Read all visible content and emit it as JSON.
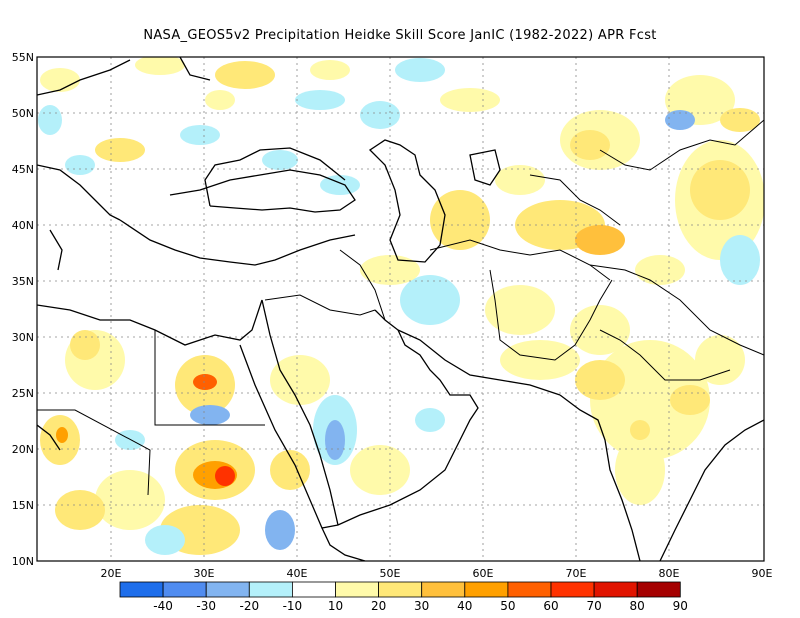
{
  "title": "NASA_GEOS5v2  Precipitation Heidke Skill Score JanIC (1982-2022) APR Fcst",
  "lat_labels": [
    "55N",
    "50N",
    "45N",
    "40N",
    "35N",
    "30N",
    "25N",
    "20N",
    "15N",
    "10N"
  ],
  "lon_labels": [
    "20E",
    "30E",
    "40E",
    "50E",
    "60E",
    "70E",
    "80E",
    "90E"
  ],
  "colorbar": {
    "colors": [
      "#1e6eeb",
      "#508cf0",
      "#82b4f0",
      "#b4f0fa",
      "#ffffff",
      "#fffaaa",
      "#ffe878",
      "#ffc03c",
      "#ffa000",
      "#ff6000",
      "#ff3200",
      "#e11400",
      "#a50000"
    ],
    "labels": [
      "-40",
      "-30",
      "-20",
      "-10",
      "10",
      "20",
      "30",
      "40",
      "50",
      "60",
      "70",
      "80",
      "90"
    ]
  }
}
